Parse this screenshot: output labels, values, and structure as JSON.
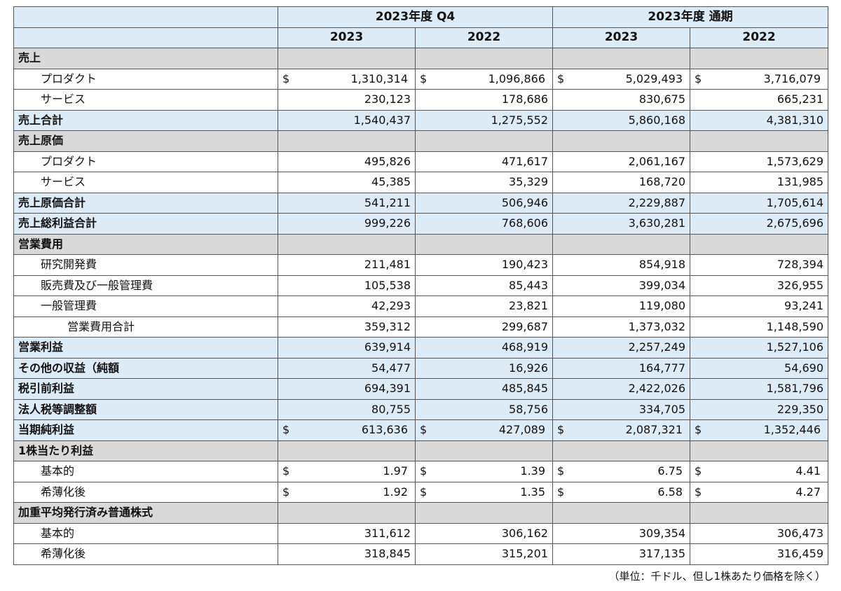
{
  "header": {
    "q4_label": "2023年度 Q4",
    "fy_label": "2023年度 通期",
    "years": [
      "2023",
      "2022",
      "2023",
      "2022"
    ]
  },
  "rows": [
    {
      "label": "売上",
      "style": "section",
      "values": [
        "",
        "",
        "",
        ""
      ]
    },
    {
      "label": "プロダクト",
      "style": "item",
      "currency": "$",
      "values": [
        "1,310,314",
        "1,096,866",
        "5,029,493",
        "3,716,079"
      ]
    },
    {
      "label": "サービス",
      "style": "item",
      "values": [
        "230,123",
        "178,686",
        "830,675",
        "665,231"
      ]
    },
    {
      "label": "売上合計",
      "style": "total",
      "values": [
        "1,540,437",
        "1,275,552",
        "5,860,168",
        "4,381,310"
      ]
    },
    {
      "label": "売上原価",
      "style": "section",
      "values": [
        "",
        "",
        "",
        ""
      ]
    },
    {
      "label": "プロダクト",
      "style": "item",
      "values": [
        "495,826",
        "471,617",
        "2,061,167",
        "1,573,629"
      ]
    },
    {
      "label": "サービス",
      "style": "item",
      "values": [
        "45,385",
        "35,329",
        "168,720",
        "131,985"
      ]
    },
    {
      "label": "売上原価合計",
      "style": "total",
      "values": [
        "541,211",
        "506,946",
        "2,229,887",
        "1,705,614"
      ]
    },
    {
      "label": "売上総利益合計",
      "style": "total",
      "values": [
        "999,226",
        "768,606",
        "3,630,281",
        "2,675,696"
      ]
    },
    {
      "label": "営業費用",
      "style": "section",
      "values": [
        "",
        "",
        "",
        ""
      ]
    },
    {
      "label": "研究開発費",
      "style": "item",
      "values": [
        "211,481",
        "190,423",
        "854,918",
        "728,394"
      ]
    },
    {
      "label": "販売費及び一般管理費",
      "style": "item",
      "values": [
        "105,538",
        "85,443",
        "399,034",
        "326,955"
      ]
    },
    {
      "label": "一般管理費",
      "style": "item",
      "values": [
        "42,293",
        "23,821",
        "119,080",
        "93,241"
      ]
    },
    {
      "label": "営業費用合計",
      "style": "subtotal",
      "values": [
        "359,312",
        "299,687",
        "1,373,032",
        "1,148,590"
      ]
    },
    {
      "label": "営業利益",
      "style": "total",
      "values": [
        "639,914",
        "468,919",
        "2,257,249",
        "1,527,106"
      ]
    },
    {
      "label": "その他の収益（純額",
      "style": "total",
      "values": [
        "54,477",
        "16,926",
        "164,777",
        "54,690"
      ]
    },
    {
      "label": "税引前利益",
      "style": "total",
      "values": [
        "694,391",
        "485,845",
        "2,422,026",
        "1,581,796"
      ]
    },
    {
      "label": "法人税等調整額",
      "style": "total",
      "values": [
        "80,755",
        "58,756",
        "334,705",
        "229,350"
      ]
    },
    {
      "label": "当期純利益",
      "style": "total",
      "currency": "$",
      "values": [
        "613,636",
        "427,089",
        "2,087,321",
        "1,352,446"
      ]
    },
    {
      "label": "1株当たり利益",
      "style": "section",
      "values": [
        "",
        "",
        "",
        ""
      ]
    },
    {
      "label": "基本的",
      "style": "item",
      "currency": "$",
      "values": [
        "1.97",
        "1.39",
        "6.75",
        "4.41"
      ]
    },
    {
      "label": "希薄化後",
      "style": "item",
      "currency": "$",
      "values": [
        "1.92",
        "1.35",
        "6.58",
        "4.27"
      ]
    },
    {
      "label": "加重平均発行済み普通株式",
      "style": "section",
      "values": [
        "",
        "",
        "",
        ""
      ]
    },
    {
      "label": "基本的",
      "style": "item",
      "values": [
        "311,612",
        "306,162",
        "309,354",
        "306,473"
      ]
    },
    {
      "label": "希薄化後",
      "style": "item",
      "values": [
        "318,845",
        "315,201",
        "317,135",
        "316,459"
      ]
    }
  ],
  "footnote": "（単位：千ドル、但し1株あたり価格を除く）",
  "colors": {
    "header_blue": "#ddebf7",
    "section_gray": "#d9d9d9",
    "border": "#555555"
  }
}
